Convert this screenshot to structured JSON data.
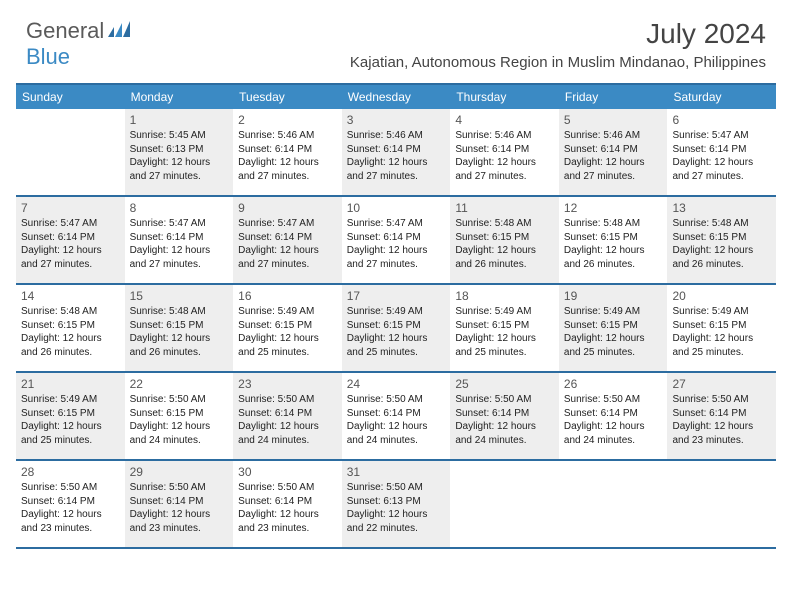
{
  "brand": {
    "part1": "General",
    "part2": "Blue"
  },
  "title": "July 2024",
  "location": "Kajatian, Autonomous Region in Muslim Mindanao, Philippines",
  "colors": {
    "header_bg": "#3b8ac4",
    "border": "#2c6ca0",
    "shaded": "#eeeeee",
    "text": "#222222",
    "logo_gray": "#5a5a5a",
    "logo_blue": "#3b8ac4"
  },
  "day_headers": [
    "Sunday",
    "Monday",
    "Tuesday",
    "Wednesday",
    "Thursday",
    "Friday",
    "Saturday"
  ],
  "weeks": [
    [
      {
        "num": "",
        "sunrise": "",
        "sunset": "",
        "daylight": "",
        "shaded": false
      },
      {
        "num": "1",
        "sunrise": "Sunrise: 5:45 AM",
        "sunset": "Sunset: 6:13 PM",
        "daylight": "Daylight: 12 hours and 27 minutes.",
        "shaded": true
      },
      {
        "num": "2",
        "sunrise": "Sunrise: 5:46 AM",
        "sunset": "Sunset: 6:14 PM",
        "daylight": "Daylight: 12 hours and 27 minutes.",
        "shaded": false
      },
      {
        "num": "3",
        "sunrise": "Sunrise: 5:46 AM",
        "sunset": "Sunset: 6:14 PM",
        "daylight": "Daylight: 12 hours and 27 minutes.",
        "shaded": true
      },
      {
        "num": "4",
        "sunrise": "Sunrise: 5:46 AM",
        "sunset": "Sunset: 6:14 PM",
        "daylight": "Daylight: 12 hours and 27 minutes.",
        "shaded": false
      },
      {
        "num": "5",
        "sunrise": "Sunrise: 5:46 AM",
        "sunset": "Sunset: 6:14 PM",
        "daylight": "Daylight: 12 hours and 27 minutes.",
        "shaded": true
      },
      {
        "num": "6",
        "sunrise": "Sunrise: 5:47 AM",
        "sunset": "Sunset: 6:14 PM",
        "daylight": "Daylight: 12 hours and 27 minutes.",
        "shaded": false
      }
    ],
    [
      {
        "num": "7",
        "sunrise": "Sunrise: 5:47 AM",
        "sunset": "Sunset: 6:14 PM",
        "daylight": "Daylight: 12 hours and 27 minutes.",
        "shaded": true
      },
      {
        "num": "8",
        "sunrise": "Sunrise: 5:47 AM",
        "sunset": "Sunset: 6:14 PM",
        "daylight": "Daylight: 12 hours and 27 minutes.",
        "shaded": false
      },
      {
        "num": "9",
        "sunrise": "Sunrise: 5:47 AM",
        "sunset": "Sunset: 6:14 PM",
        "daylight": "Daylight: 12 hours and 27 minutes.",
        "shaded": true
      },
      {
        "num": "10",
        "sunrise": "Sunrise: 5:47 AM",
        "sunset": "Sunset: 6:14 PM",
        "daylight": "Daylight: 12 hours and 27 minutes.",
        "shaded": false
      },
      {
        "num": "11",
        "sunrise": "Sunrise: 5:48 AM",
        "sunset": "Sunset: 6:15 PM",
        "daylight": "Daylight: 12 hours and 26 minutes.",
        "shaded": true
      },
      {
        "num": "12",
        "sunrise": "Sunrise: 5:48 AM",
        "sunset": "Sunset: 6:15 PM",
        "daylight": "Daylight: 12 hours and 26 minutes.",
        "shaded": false
      },
      {
        "num": "13",
        "sunrise": "Sunrise: 5:48 AM",
        "sunset": "Sunset: 6:15 PM",
        "daylight": "Daylight: 12 hours and 26 minutes.",
        "shaded": true
      }
    ],
    [
      {
        "num": "14",
        "sunrise": "Sunrise: 5:48 AM",
        "sunset": "Sunset: 6:15 PM",
        "daylight": "Daylight: 12 hours and 26 minutes.",
        "shaded": false
      },
      {
        "num": "15",
        "sunrise": "Sunrise: 5:48 AM",
        "sunset": "Sunset: 6:15 PM",
        "daylight": "Daylight: 12 hours and 26 minutes.",
        "shaded": true
      },
      {
        "num": "16",
        "sunrise": "Sunrise: 5:49 AM",
        "sunset": "Sunset: 6:15 PM",
        "daylight": "Daylight: 12 hours and 25 minutes.",
        "shaded": false
      },
      {
        "num": "17",
        "sunrise": "Sunrise: 5:49 AM",
        "sunset": "Sunset: 6:15 PM",
        "daylight": "Daylight: 12 hours and 25 minutes.",
        "shaded": true
      },
      {
        "num": "18",
        "sunrise": "Sunrise: 5:49 AM",
        "sunset": "Sunset: 6:15 PM",
        "daylight": "Daylight: 12 hours and 25 minutes.",
        "shaded": false
      },
      {
        "num": "19",
        "sunrise": "Sunrise: 5:49 AM",
        "sunset": "Sunset: 6:15 PM",
        "daylight": "Daylight: 12 hours and 25 minutes.",
        "shaded": true
      },
      {
        "num": "20",
        "sunrise": "Sunrise: 5:49 AM",
        "sunset": "Sunset: 6:15 PM",
        "daylight": "Daylight: 12 hours and 25 minutes.",
        "shaded": false
      }
    ],
    [
      {
        "num": "21",
        "sunrise": "Sunrise: 5:49 AM",
        "sunset": "Sunset: 6:15 PM",
        "daylight": "Daylight: 12 hours and 25 minutes.",
        "shaded": true
      },
      {
        "num": "22",
        "sunrise": "Sunrise: 5:50 AM",
        "sunset": "Sunset: 6:15 PM",
        "daylight": "Daylight: 12 hours and 24 minutes.",
        "shaded": false
      },
      {
        "num": "23",
        "sunrise": "Sunrise: 5:50 AM",
        "sunset": "Sunset: 6:14 PM",
        "daylight": "Daylight: 12 hours and 24 minutes.",
        "shaded": true
      },
      {
        "num": "24",
        "sunrise": "Sunrise: 5:50 AM",
        "sunset": "Sunset: 6:14 PM",
        "daylight": "Daylight: 12 hours and 24 minutes.",
        "shaded": false
      },
      {
        "num": "25",
        "sunrise": "Sunrise: 5:50 AM",
        "sunset": "Sunset: 6:14 PM",
        "daylight": "Daylight: 12 hours and 24 minutes.",
        "shaded": true
      },
      {
        "num": "26",
        "sunrise": "Sunrise: 5:50 AM",
        "sunset": "Sunset: 6:14 PM",
        "daylight": "Daylight: 12 hours and 24 minutes.",
        "shaded": false
      },
      {
        "num": "27",
        "sunrise": "Sunrise: 5:50 AM",
        "sunset": "Sunset: 6:14 PM",
        "daylight": "Daylight: 12 hours and 23 minutes.",
        "shaded": true
      }
    ],
    [
      {
        "num": "28",
        "sunrise": "Sunrise: 5:50 AM",
        "sunset": "Sunset: 6:14 PM",
        "daylight": "Daylight: 12 hours and 23 minutes.",
        "shaded": false
      },
      {
        "num": "29",
        "sunrise": "Sunrise: 5:50 AM",
        "sunset": "Sunset: 6:14 PM",
        "daylight": "Daylight: 12 hours and 23 minutes.",
        "shaded": true
      },
      {
        "num": "30",
        "sunrise": "Sunrise: 5:50 AM",
        "sunset": "Sunset: 6:14 PM",
        "daylight": "Daylight: 12 hours and 23 minutes.",
        "shaded": false
      },
      {
        "num": "31",
        "sunrise": "Sunrise: 5:50 AM",
        "sunset": "Sunset: 6:13 PM",
        "daylight": "Daylight: 12 hours and 22 minutes.",
        "shaded": true
      },
      {
        "num": "",
        "sunrise": "",
        "sunset": "",
        "daylight": "",
        "shaded": false
      },
      {
        "num": "",
        "sunrise": "",
        "sunset": "",
        "daylight": "",
        "shaded": false
      },
      {
        "num": "",
        "sunrise": "",
        "sunset": "",
        "daylight": "",
        "shaded": false
      }
    ]
  ]
}
